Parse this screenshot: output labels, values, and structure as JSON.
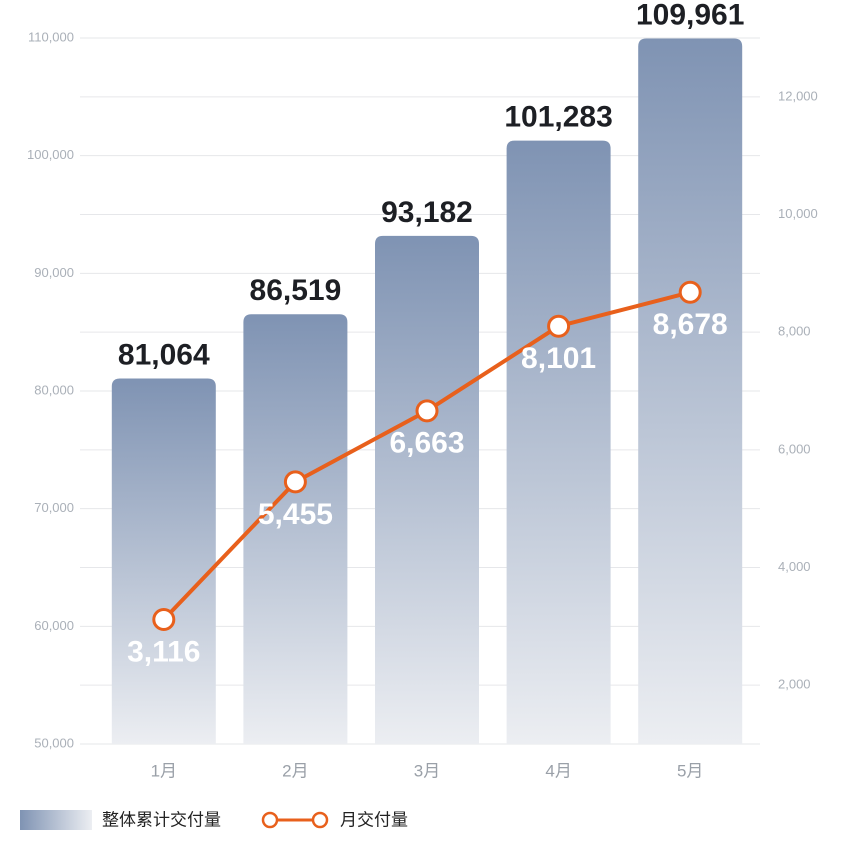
{
  "chart_data": {
    "type": "bar",
    "categories": [
      "1月",
      "2月",
      "3月",
      "4月",
      "5月"
    ],
    "series": [
      {
        "name": "整体累计交付量",
        "type": "bar",
        "color": "#7f93b3",
        "values": [
          81064,
          86519,
          93182,
          101283,
          109961
        ],
        "value_labels": [
          "81,064",
          "86,519",
          "93,182",
          "101,283",
          "109,961"
        ]
      },
      {
        "name": "月交付量",
        "type": "line",
        "axis": "y2",
        "color": "#e8601c",
        "values": [
          3116,
          5455,
          6663,
          8101,
          8678
        ],
        "value_labels": [
          "3,116",
          "5,455",
          "6,663",
          "8,101",
          "8,678"
        ]
      }
    ],
    "ylim": [
      50000,
      110000
    ],
    "yticks": [
      {
        "value": 50000,
        "label": "50,000"
      },
      {
        "value": 60000,
        "label": "60,000"
      },
      {
        "value": 70000,
        "label": "70,000"
      },
      {
        "value": 80000,
        "label": "80,000"
      },
      {
        "value": 90000,
        "label": "90,000"
      },
      {
        "value": 100000,
        "label": "100,000"
      },
      {
        "value": 110000,
        "label": "110,000"
      }
    ],
    "y2lim": [
      1000,
      13000
    ],
    "y2ticks": [
      {
        "value": 2000,
        "label": "2,000"
      },
      {
        "value": 4000,
        "label": "4,000"
      },
      {
        "value": 6000,
        "label": "6,000"
      },
      {
        "value": 8000,
        "label": "8,000"
      },
      {
        "value": 10000,
        "label": "10,000"
      },
      {
        "value": 12000,
        "label": "12,000"
      }
    ],
    "grid": true
  }
}
